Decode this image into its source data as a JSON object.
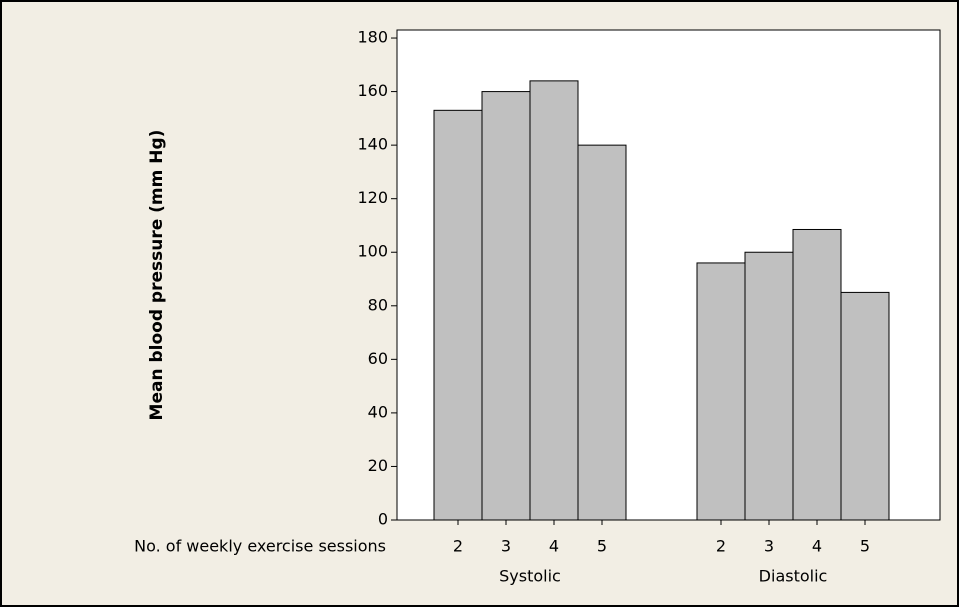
{
  "chart_data": {
    "type": "bar",
    "y_label": "Mean blood pressure (mm Hg)",
    "x_label": "No. of weekly exercise sessions",
    "categories": [
      "2",
      "3",
      "4",
      "5"
    ],
    "series": [
      {
        "name": "Systolic",
        "color": "#c0c0c0",
        "values": [
          153,
          160,
          164,
          140
        ]
      },
      {
        "name": "Diastolic",
        "color": "#c0c0c0",
        "values": [
          96,
          100,
          108.5,
          85
        ]
      }
    ],
    "ylim": [
      0,
      183
    ],
    "yticks": [
      0,
      20,
      40,
      60,
      80,
      100,
      120,
      140,
      160,
      180
    ]
  }
}
